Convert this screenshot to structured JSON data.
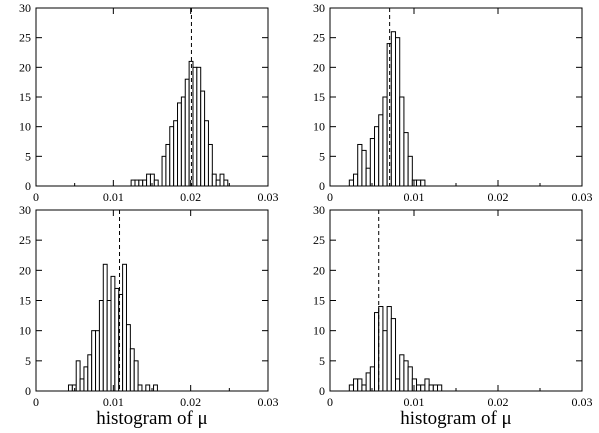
{
  "chart_data": [
    {
      "type": "bar",
      "panel": "top-left",
      "title": "",
      "xlabel": "",
      "ylabel": "",
      "xlim": [
        0,
        0.03
      ],
      "ylim": [
        0,
        30
      ],
      "xticks": [
        "0",
        "0.01",
        "0.02",
        "0.03"
      ],
      "yticks": [
        "0",
        "5",
        "10",
        "15",
        "20",
        "25",
        "30"
      ],
      "bin_width": 0.0005,
      "bin_start": 0.0123,
      "values": [
        1,
        1,
        1,
        1,
        2,
        2,
        1,
        0,
        5,
        7,
        10,
        11,
        14,
        15,
        18,
        21,
        20,
        20,
        16,
        11,
        7,
        2,
        1,
        2,
        1
      ],
      "mean": 0.0201,
      "grid": false
    },
    {
      "type": "bar",
      "panel": "top-right",
      "title": "",
      "xlabel": "",
      "ylabel": "",
      "xlim": [
        0,
        0.03
      ],
      "ylim": [
        0,
        30
      ],
      "xticks": [
        "0",
        "0.01",
        "0.02",
        "0.03"
      ],
      "yticks": [
        "0",
        "5",
        "10",
        "15",
        "20",
        "25",
        "30"
      ],
      "bin_width": 0.0005,
      "bin_start": 0.0023,
      "values": [
        1,
        2,
        7,
        6,
        3,
        8,
        10,
        12,
        15,
        24,
        26,
        25,
        15,
        9,
        5,
        1,
        1,
        1
      ],
      "mean": 0.0071,
      "grid": false
    },
    {
      "type": "bar",
      "panel": "bottom-left",
      "title": "",
      "xlabel": "histogram of μ",
      "ylabel": "",
      "xlim": [
        0,
        0.03
      ],
      "ylim": [
        0,
        30
      ],
      "xticks": [
        "0",
        "0.01",
        "0.02",
        "0.03"
      ],
      "yticks": [
        "0",
        "5",
        "10",
        "15",
        "20",
        "25",
        "30"
      ],
      "bin_width": 0.0005,
      "bin_start": 0.0042,
      "values": [
        1,
        1,
        5,
        2,
        4,
        6,
        10,
        10,
        15,
        21,
        15,
        19,
        17,
        16,
        21,
        11,
        7,
        5,
        1,
        0,
        1,
        0,
        1
      ],
      "mean": 0.0108,
      "grid": false
    },
    {
      "type": "bar",
      "panel": "bottom-right",
      "title": "",
      "xlabel": "histogram of μ",
      "ylabel": "",
      "xlim": [
        0,
        0.03
      ],
      "ylim": [
        0,
        30
      ],
      "xticks": [
        "0",
        "0.01",
        "0.02",
        "0.03"
      ],
      "yticks": [
        "0",
        "5",
        "10",
        "15",
        "20",
        "25",
        "30"
      ],
      "bin_width": 0.0005,
      "bin_start": 0.0023,
      "values": [
        1,
        2,
        2,
        1,
        3,
        4,
        13,
        14,
        10,
        14,
        12,
        2,
        6,
        5,
        4,
        2,
        1,
        1,
        2,
        1,
        1,
        1
      ],
      "mean": 0.0058,
      "grid": false
    }
  ]
}
